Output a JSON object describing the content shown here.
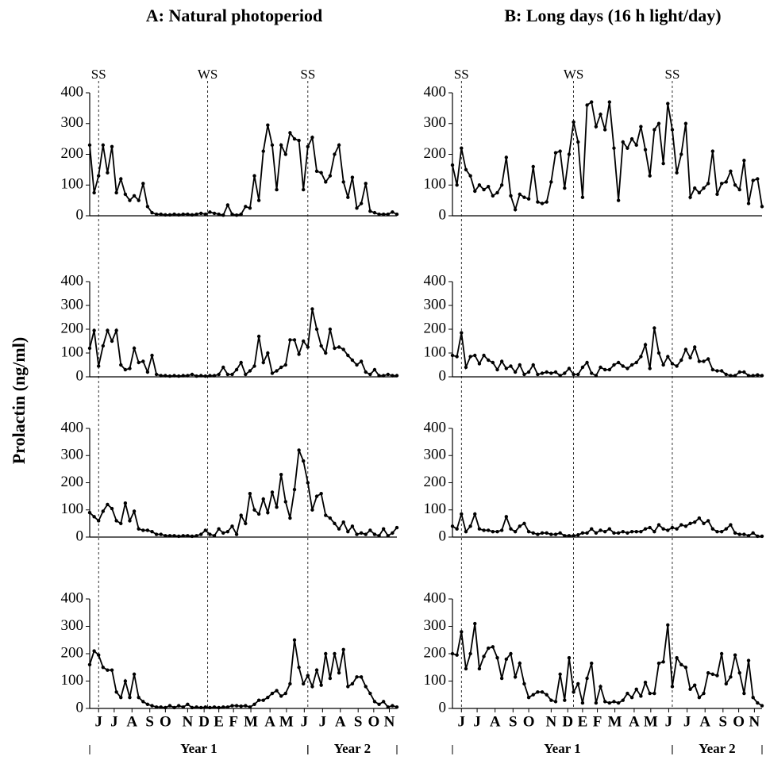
{
  "column_titles": [
    "A: Natural photoperiod",
    "B: Long days (16 h light/day)"
  ],
  "y_axis_label": "Prolactin (ng/ml)",
  "chart_data": [
    {
      "type": "line",
      "xlim": [
        0,
        69
      ],
      "ylim": [
        0,
        400
      ],
      "yticks": [
        0,
        100,
        200,
        300,
        400
      ],
      "annotations": [
        {
          "text": "SS",
          "x": 2
        },
        {
          "text": "WS",
          "x": 26.5
        },
        {
          "text": "SS",
          "x": 49
        }
      ],
      "series": [
        {
          "color": "#000000",
          "values": [
            230,
            75,
            130,
            230,
            140,
            225,
            75,
            120,
            70,
            50,
            65,
            50,
            105,
            30,
            10,
            5,
            5,
            3,
            3,
            5,
            3,
            5,
            5,
            3,
            5,
            8,
            5,
            12,
            8,
            5,
            2,
            35,
            5,
            2,
            5,
            30,
            25,
            130,
            50,
            210,
            295,
            230,
            85,
            230,
            200,
            270,
            250,
            245,
            85,
            225,
            255,
            145,
            140,
            110,
            130,
            200,
            230,
            110,
            60,
            125,
            25,
            40,
            105,
            15,
            10,
            5,
            5,
            5,
            12,
            5
          ]
        }
      ]
    },
    {
      "type": "line",
      "xlim": [
        0,
        69
      ],
      "ylim": [
        0,
        400
      ],
      "yticks": [
        0,
        100,
        200,
        300,
        400
      ],
      "series": [
        {
          "color": "#000000",
          "values": [
            120,
            195,
            45,
            130,
            195,
            150,
            195,
            50,
            30,
            35,
            120,
            60,
            65,
            20,
            90,
            10,
            5,
            5,
            3,
            5,
            3,
            5,
            5,
            10,
            3,
            5,
            3,
            5,
            5,
            10,
            40,
            10,
            10,
            30,
            60,
            10,
            25,
            45,
            170,
            60,
            100,
            15,
            25,
            40,
            50,
            155,
            155,
            95,
            150,
            125,
            285,
            200,
            130,
            100,
            200,
            120,
            125,
            115,
            90,
            70,
            50,
            65,
            20,
            10,
            30,
            5,
            5,
            10,
            5,
            5
          ]
        }
      ]
    },
    {
      "type": "line",
      "xlim": [
        0,
        69
      ],
      "ylim": [
        0,
        400
      ],
      "yticks": [
        0,
        100,
        200,
        300,
        400
      ],
      "series": [
        {
          "color": "#000000",
          "values": [
            90,
            75,
            60,
            95,
            120,
            105,
            60,
            50,
            125,
            60,
            95,
            30,
            25,
            25,
            20,
            10,
            10,
            5,
            5,
            5,
            3,
            5,
            5,
            3,
            5,
            10,
            25,
            10,
            5,
            30,
            15,
            20,
            40,
            10,
            80,
            50,
            160,
            100,
            85,
            140,
            90,
            165,
            110,
            230,
            130,
            70,
            175,
            320,
            280,
            200,
            100,
            150,
            160,
            80,
            70,
            50,
            30,
            55,
            20,
            40,
            10,
            15,
            10,
            25,
            10,
            5,
            30,
            5,
            15,
            35
          ]
        }
      ]
    },
    {
      "type": "line",
      "xlim": [
        0,
        69
      ],
      "ylim": [
        0,
        400
      ],
      "yticks": [
        0,
        100,
        200,
        300,
        400
      ],
      "xticks": [
        {
          "value": 2,
          "label": "J"
        },
        {
          "value": 5.5,
          "label": "J"
        },
        {
          "value": 9.5,
          "label": "A"
        },
        {
          "value": 13.5,
          "label": "S"
        },
        {
          "value": 17,
          "label": "O"
        },
        {
          "value": 22,
          "label": "N"
        },
        {
          "value": 25.7,
          "label": "D"
        },
        {
          "value": 29,
          "label": "E"
        },
        {
          "value": 32.3,
          "label": "F"
        },
        {
          "value": 36.2,
          "label": "M"
        },
        {
          "value": 40.5,
          "label": "A"
        },
        {
          "value": 44.2,
          "label": "M"
        },
        {
          "value": 48.2,
          "label": "J"
        },
        {
          "value": 52.3,
          "label": "J"
        },
        {
          "value": 56.3,
          "label": "A"
        },
        {
          "value": 60.3,
          "label": "S"
        },
        {
          "value": 63.8,
          "label": "O"
        },
        {
          "value": 67.3,
          "label": "N"
        }
      ],
      "periods": [
        {
          "text": "Year 1",
          "from": 0,
          "to": 49
        },
        {
          "text": "Year 2",
          "from": 49,
          "to": 69
        }
      ],
      "series": [
        {
          "color": "#000000",
          "values": [
            160,
            210,
            195,
            150,
            140,
            140,
            60,
            40,
            100,
            40,
            125,
            40,
            25,
            15,
            10,
            5,
            5,
            3,
            10,
            3,
            10,
            5,
            15,
            3,
            5,
            3,
            5,
            3,
            5,
            3,
            5,
            5,
            10,
            10,
            8,
            10,
            5,
            15,
            30,
            30,
            40,
            55,
            65,
            45,
            55,
            90,
            250,
            150,
            90,
            120,
            80,
            140,
            85,
            200,
            110,
            200,
            130,
            215,
            80,
            90,
            115,
            115,
            80,
            55,
            25,
            15,
            25,
            5,
            10,
            5
          ]
        }
      ]
    },
    {
      "type": "line",
      "xlim": [
        0,
        69
      ],
      "ylim": [
        0,
        400
      ],
      "yticks": [
        0,
        100,
        200,
        300,
        400
      ],
      "annotations": [
        {
          "text": "SS",
          "x": 2
        },
        {
          "text": "WS",
          "x": 27
        },
        {
          "text": "SS",
          "x": 49
        }
      ],
      "series": [
        {
          "color": "#000000",
          "values": [
            165,
            100,
            220,
            150,
            130,
            80,
            100,
            85,
            95,
            65,
            75,
            100,
            190,
            65,
            20,
            70,
            60,
            55,
            160,
            45,
            40,
            45,
            110,
            205,
            210,
            90,
            200,
            305,
            240,
            60,
            360,
            370,
            290,
            330,
            280,
            370,
            220,
            50,
            240,
            220,
            250,
            230,
            290,
            215,
            130,
            280,
            300,
            170,
            365,
            280,
            140,
            200,
            300,
            60,
            90,
            75,
            90,
            105,
            210,
            70,
            105,
            110,
            145,
            100,
            85,
            180,
            40,
            115,
            120,
            30
          ]
        }
      ]
    },
    {
      "type": "line",
      "xlim": [
        0,
        69
      ],
      "ylim": [
        0,
        400
      ],
      "yticks": [
        0,
        100,
        200,
        300,
        400
      ],
      "series": [
        {
          "color": "#000000",
          "values": [
            90,
            85,
            185,
            40,
            85,
            90,
            55,
            90,
            70,
            60,
            30,
            65,
            35,
            45,
            20,
            50,
            10,
            20,
            50,
            10,
            15,
            20,
            15,
            20,
            5,
            15,
            35,
            10,
            10,
            40,
            60,
            15,
            5,
            40,
            30,
            30,
            50,
            60,
            45,
            35,
            50,
            60,
            85,
            135,
            35,
            205,
            100,
            50,
            85,
            55,
            45,
            70,
            115,
            80,
            125,
            65,
            65,
            75,
            30,
            25,
            25,
            10,
            5,
            5,
            20,
            20,
            5,
            5,
            8,
            5
          ]
        }
      ]
    },
    {
      "type": "line",
      "xlim": [
        0,
        69
      ],
      "ylim": [
        0,
        400
      ],
      "yticks": [
        0,
        100,
        200,
        300,
        400
      ],
      "series": [
        {
          "color": "#000000",
          "values": [
            40,
            30,
            85,
            20,
            40,
            85,
            30,
            25,
            25,
            20,
            20,
            25,
            75,
            30,
            20,
            40,
            50,
            20,
            15,
            10,
            15,
            15,
            10,
            10,
            15,
            5,
            5,
            5,
            8,
            15,
            15,
            30,
            15,
            25,
            20,
            30,
            15,
            15,
            20,
            15,
            20,
            20,
            20,
            30,
            35,
            20,
            45,
            30,
            25,
            35,
            30,
            45,
            40,
            50,
            55,
            70,
            50,
            60,
            30,
            20,
            20,
            30,
            45,
            15,
            10,
            10,
            5,
            15,
            3,
            3
          ]
        }
      ]
    },
    {
      "type": "line",
      "xlim": [
        0,
        69
      ],
      "ylim": [
        0,
        400
      ],
      "yticks": [
        0,
        100,
        200,
        300,
        400
      ],
      "xticks": [
        {
          "value": 2,
          "label": "J"
        },
        {
          "value": 5.5,
          "label": "J"
        },
        {
          "value": 9.5,
          "label": "A"
        },
        {
          "value": 13.5,
          "label": "S"
        },
        {
          "value": 17,
          "label": "O"
        },
        {
          "value": 22,
          "label": "N"
        },
        {
          "value": 25.7,
          "label": "D"
        },
        {
          "value": 29,
          "label": "E"
        },
        {
          "value": 32.3,
          "label": "F"
        },
        {
          "value": 36.2,
          "label": "M"
        },
        {
          "value": 40.5,
          "label": "A"
        },
        {
          "value": 44.2,
          "label": "M"
        },
        {
          "value": 48.2,
          "label": "J"
        },
        {
          "value": 52.3,
          "label": "J"
        },
        {
          "value": 56.3,
          "label": "A"
        },
        {
          "value": 60.3,
          "label": "S"
        },
        {
          "value": 63.8,
          "label": "O"
        },
        {
          "value": 67.3,
          "label": "N"
        }
      ],
      "periods": [
        {
          "text": "Year 1",
          "from": 0,
          "to": 49
        },
        {
          "text": "Year 2",
          "from": 49,
          "to": 69
        }
      ],
      "series": [
        {
          "color": "#000000",
          "values": [
            200,
            195,
            280,
            145,
            200,
            310,
            145,
            190,
            220,
            225,
            185,
            110,
            180,
            200,
            115,
            165,
            90,
            40,
            50,
            60,
            60,
            50,
            30,
            25,
            125,
            30,
            185,
            60,
            90,
            20,
            110,
            165,
            20,
            80,
            25,
            20,
            25,
            20,
            30,
            55,
            40,
            70,
            45,
            95,
            55,
            55,
            165,
            170,
            305,
            80,
            185,
            160,
            150,
            70,
            85,
            40,
            55,
            130,
            125,
            120,
            200,
            90,
            115,
            195,
            130,
            55,
            175,
            40,
            20,
            10
          ]
        }
      ]
    }
  ]
}
